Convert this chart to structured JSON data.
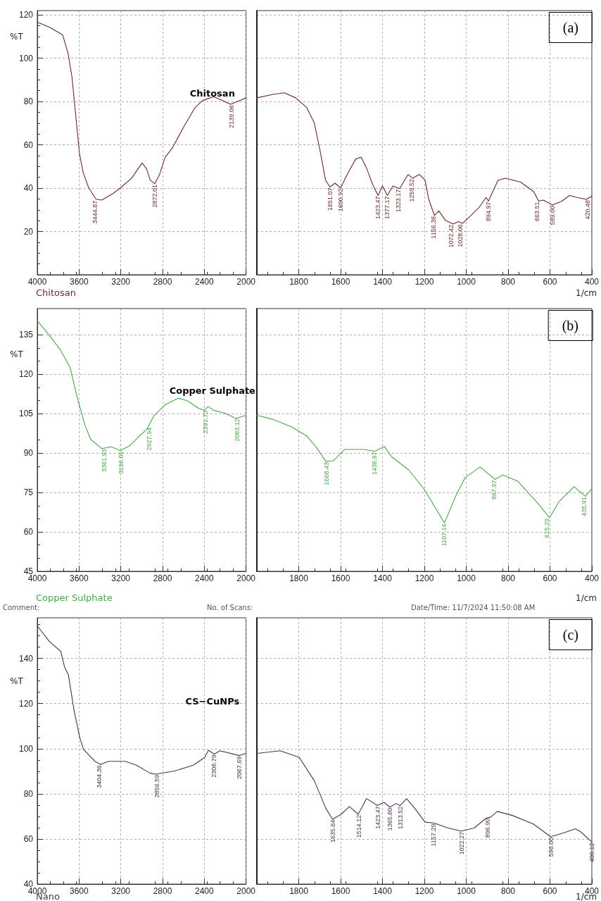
{
  "chart_data": [
    {
      "type": "line",
      "ylabel": "%T",
      "xlim": [
        4000,
        2000
      ],
      "xticks": [
        4000,
        3600,
        3200,
        2800,
        2400,
        2000
      ],
      "ylim": [
        0,
        122
      ],
      "yticks": [
        20,
        40,
        60,
        80,
        100,
        120
      ],
      "grid": true,
      "legend": "bottom left",
      "marker": "none",
      "annotations": [
        "Chitosan",
        {
          "text": "3444.87",
          "x": 3444.87,
          "y": 34.6
        },
        {
          "text": "2872.01",
          "x": 2872.01,
          "y": 42
        },
        {
          "text": "2139.06",
          "x": 2139.06,
          "y": 78.7
        }
      ],
      "series": [
        {
          "name": "Chitosan",
          "color": "#6b2a2a",
          "x": [
            4000,
            3882,
            3757,
            3704,
            3668,
            3632,
            3596,
            3561,
            3507,
            3436,
            3382,
            3275,
            3204,
            3096,
            2996,
            2954,
            2918,
            2875,
            2829,
            2775,
            2704,
            2596,
            2489,
            2418,
            2311,
            2239,
            2150,
            2061,
            2000
          ],
          "values": [
            116.6,
            114.3,
            110.8,
            102,
            91.4,
            73.7,
            56,
            47.2,
            40.1,
            34.8,
            34.5,
            37.5,
            40.1,
            44.6,
            51.6,
            49,
            43.7,
            42,
            46.3,
            54.3,
            58.7,
            68.4,
            77.2,
            80.4,
            82.2,
            80.8,
            78.7,
            80.4,
            81.7
          ]
        }
      ]
    },
    {
      "type": "line",
      "title": "(a)",
      "xlabel": "1/cm",
      "xlim": [
        2000,
        400
      ],
      "xticks": [
        1800,
        1600,
        1400,
        1200,
        1000,
        800,
        600,
        400
      ],
      "ylim": [
        0,
        122
      ],
      "yticks": [
        20,
        40,
        60,
        80,
        100,
        120
      ],
      "grid": true,
      "tick_labels": "x",
      "marker": "none",
      "annotations": [
        {
          "text": "1651.07",
          "x": 1651.07,
          "y": 40.5
        },
        {
          "text": "1600.92",
          "x": 1600.92,
          "y": 40.1
        },
        {
          "text": "1423.47",
          "x": 1423.47,
          "y": 36.6
        },
        {
          "text": "1377.17",
          "x": 1377.17,
          "y": 36.6
        },
        {
          "text": "1323.17",
          "x": 1323.17,
          "y": 39.8
        },
        {
          "text": "1259.52",
          "x": 1259.52,
          "y": 44.6
        },
        {
          "text": "1156.36",
          "x": 1156.36,
          "y": 27.4
        },
        {
          "text": "1072.42",
          "x": 1072.42,
          "y": 23.4
        },
        {
          "text": "1028.06",
          "x": 1028.06,
          "y": 23.7
        },
        {
          "text": "894.97",
          "x": 894.97,
          "y": 34
        },
        {
          "text": "663.51",
          "x": 663.51,
          "y": 34
        },
        {
          "text": "589.00",
          "x": 589,
          "y": 32.2
        },
        {
          "text": "420.48",
          "x": 420.48,
          "y": 34.8
        }
      ],
      "series": [
        {
          "color": "#6b2a2a",
          "x": [
            2000,
            1923,
            1869,
            1815,
            1762,
            1726,
            1699,
            1672,
            1651,
            1627,
            1600,
            1564,
            1528,
            1502,
            1475,
            1448,
            1421,
            1400,
            1377,
            1350,
            1318,
            1278,
            1257,
            1224,
            1197,
            1179,
            1152,
            1131,
            1099,
            1063,
            1036,
            1018,
            973,
            937,
            905,
            894,
            848,
            812,
            740,
            678,
            654,
            632,
            588,
            543,
            507,
            471,
            426,
            400
          ],
          "values": [
            81.7,
            83.3,
            84,
            81.7,
            77.2,
            70.2,
            57.8,
            43.7,
            40.5,
            42.3,
            40.1,
            47.2,
            53.4,
            54.3,
            49,
            41.9,
            36.6,
            41,
            36.6,
            41,
            39.8,
            46.3,
            44.6,
            46.3,
            43.7,
            34.8,
            27.4,
            29.5,
            25.1,
            23.4,
            24.6,
            23.7,
            27.8,
            31.3,
            35.7,
            34,
            43.7,
            44.6,
            42.8,
            38.4,
            34,
            34.5,
            32.2,
            34,
            36.6,
            35.7,
            34.8,
            36.3
          ]
        }
      ]
    },
    {
      "type": "line",
      "ylabel": "%T",
      "xlim": [
        4000,
        2000
      ],
      "xticks": [
        4000,
        3600,
        3200,
        2800,
        2400,
        2000
      ],
      "ylim": [
        45,
        145
      ],
      "yticks": [
        45,
        60,
        75,
        90,
        105,
        120,
        135
      ],
      "grid": true,
      "legend": "bottom left",
      "marker": "none",
      "annotations": [
        "Copper Sulphate",
        {
          "text": "3361.93",
          "x": 3361.93,
          "y": 91.8
        },
        {
          "text": "3196.05",
          "x": 3196.05,
          "y": 91
        },
        {
          "text": "2927.94",
          "x": 2927.94,
          "y": 100
        },
        {
          "text": "2391.73",
          "x": 2391.73,
          "y": 106.5
        },
        {
          "text": "2083.12",
          "x": 2083.12,
          "y": 103.4
        }
      ],
      "series": [
        {
          "name": "Copper Sulphate",
          "color": "#4ca64c",
          "x": [
            4000,
            3882,
            3775,
            3686,
            3614,
            3543,
            3489,
            3382,
            3293,
            3204,
            3114,
            3025,
            2954,
            2882,
            2775,
            2650,
            2561,
            2454,
            2400,
            2364,
            2311,
            2204,
            2096,
            2000
          ],
          "values": [
            140.4,
            134.7,
            129,
            122.6,
            110.6,
            100.6,
            95.2,
            91.7,
            92.4,
            91,
            92.8,
            96.4,
            98.9,
            104.2,
            108.4,
            110.9,
            109.9,
            107,
            106.3,
            107.7,
            106.3,
            105.2,
            103.2,
            104.4
          ]
        }
      ]
    },
    {
      "type": "line",
      "title": "(b)",
      "xlabel": "1/cm",
      "xlim": [
        2000,
        400
      ],
      "xticks": [
        1800,
        1600,
        1400,
        1200,
        1000,
        800,
        600,
        400
      ],
      "ylim": [
        45,
        145
      ],
      "yticks": [
        45,
        60,
        75,
        90,
        105,
        120,
        135
      ],
      "grid": true,
      "tick_labels": "x",
      "marker": "none",
      "annotations": [
        {
          "text": "1668.43",
          "x": 1668.43,
          "y": 86.8
        },
        {
          "text": "1436.97",
          "x": 1436.97,
          "y": 90.7
        },
        {
          "text": "1107.14",
          "x": 1107.14,
          "y": 63.4
        },
        {
          "text": "867.97",
          "x": 867.97,
          "y": 80
        },
        {
          "text": "615.29",
          "x": 615.29,
          "y": 65.4
        },
        {
          "text": "435.91",
          "x": 435.91,
          "y": 73.6
        }
      ],
      "series": [
        {
          "color": "#4ca64c",
          "x": [
            2000,
            1922,
            1832,
            1760,
            1715,
            1670,
            1634,
            1580,
            1490,
            1436,
            1391,
            1355,
            1275,
            1203,
            1149,
            1104,
            1050,
            1005,
            934,
            862,
            826,
            754,
            665,
            602,
            557,
            485,
            431,
            400
          ],
          "values": [
            104.4,
            102.8,
            99.9,
            96.4,
            92.1,
            86.8,
            87.1,
            91.4,
            91.4,
            90.7,
            92.5,
            88.5,
            83.6,
            76.5,
            69.4,
            63.4,
            73.6,
            80.7,
            84.7,
            80,
            81.7,
            79.3,
            71.5,
            65.4,
            71.5,
            77.2,
            73.6,
            76.5
          ]
        }
      ]
    },
    {
      "type": "line",
      "ylabel": "%T",
      "xlim": [
        4000,
        2000
      ],
      "xticks": [
        4000,
        3600,
        3200,
        2800,
        2400,
        2000
      ],
      "ylim": [
        40,
        158
      ],
      "yticks": [
        40,
        60,
        80,
        100,
        120,
        140
      ],
      "grid": true,
      "legend": "bottom left",
      "marker": "none",
      "annotations": [
        "Comment:",
        "No. of Scans:",
        "CS−CuNPs",
        {
          "text": "3404.36",
          "x": 3404.36,
          "y": 93
        },
        {
          "text": "2856.59",
          "x": 2856.59,
          "y": 88.8
        },
        {
          "text": "2308.79",
          "x": 2308.79,
          "y": 97.7
        },
        {
          "text": "2067.69",
          "x": 2067.69,
          "y": 97
        }
      ],
      "series": [
        {
          "name": "Nano",
          "color": "#4d3350",
          "x": [
            4000,
            3884,
            3775,
            3739,
            3702,
            3648,
            3593,
            3557,
            3448,
            3394,
            3321,
            3158,
            3049,
            2922,
            2868,
            2686,
            2505,
            2396,
            2360,
            2305,
            2250,
            2069,
            2000
          ],
          "values": [
            154.4,
            147.5,
            143.1,
            136.2,
            132.7,
            117,
            104.9,
            99.7,
            94.4,
            93,
            94.4,
            94.4,
            92.7,
            89.2,
            88.7,
            90.1,
            92.7,
            96.2,
            99.3,
            97.6,
            99.1,
            97,
            97.9
          ]
        }
      ]
    },
    {
      "type": "line",
      "title": "(c)",
      "subtitle": "Date/Time: 11/7/2024 11:50:08 AM",
      "xlabel": "1/cm",
      "xlim": [
        2000,
        400
      ],
      "xticks": [
        1800,
        1600,
        1400,
        1200,
        1000,
        800,
        600,
        400
      ],
      "ylim": [
        40,
        158
      ],
      "yticks": [
        40,
        60,
        80,
        100,
        120,
        140
      ],
      "grid": true,
      "tick_labels": "x",
      "marker": "none",
      "annotations": [
        {
          "text": "1635.64",
          "x": 1635.64,
          "y": 68.9
        },
        {
          "text": "1514.12",
          "x": 1514.12,
          "y": 71
        },
        {
          "text": "1423.47",
          "x": 1423.47,
          "y": 74.9
        },
        {
          "text": "1365.60",
          "x": 1365.6,
          "y": 74.1
        },
        {
          "text": "1313.52",
          "x": 1313.52,
          "y": 74.8
        },
        {
          "text": "1157.29",
          "x": 1157.29,
          "y": 67
        },
        {
          "text": "1022.27",
          "x": 1022.27,
          "y": 63.5
        },
        {
          "text": "896.90",
          "x": 896.9,
          "y": 69.4
        },
        {
          "text": "596.00",
          "x": 596,
          "y": 61
        },
        {
          "text": "400.12",
          "x": 400.12,
          "y": 58.6
        }
      ],
      "series": [
        {
          "color": "#4d3350",
          "x": [
            2000,
            1889,
            1798,
            1725,
            1671,
            1638,
            1598,
            1558,
            1516,
            1476,
            1425,
            1392,
            1365,
            1334,
            1316,
            1285,
            1243,
            1197,
            1152,
            1088,
            1024,
            961,
            906,
            883,
            852,
            779,
            679,
            597,
            534,
            479,
            452,
            400
          ],
          "values": [
            97.9,
            99.1,
            96.2,
            85.7,
            73.6,
            68.7,
            70.9,
            74.4,
            70.9,
            77.9,
            74.9,
            76.2,
            74.1,
            75.7,
            74.8,
            77.9,
            73.2,
            67.5,
            67,
            64.9,
            63.5,
            64.9,
            69.2,
            69.7,
            72.2,
            70.4,
            66.6,
            61,
            62.7,
            64.5,
            63.1,
            58.6
          ]
        }
      ]
    }
  ]
}
